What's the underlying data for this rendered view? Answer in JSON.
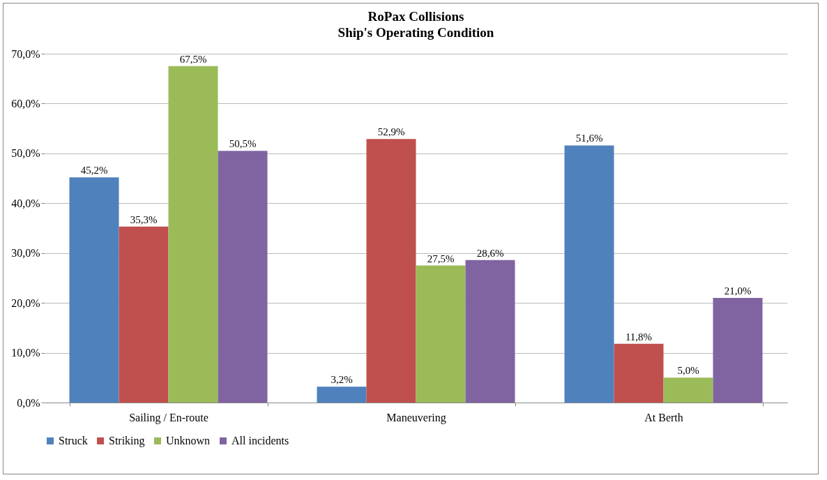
{
  "chart_data": {
    "type": "bar",
    "title": "RoPax Collisions",
    "subtitle": "Ship's Operating Condition",
    "categories": [
      "Sailing / En-route",
      "Maneuvering",
      "At Berth"
    ],
    "series": [
      {
        "name": "Struck",
        "color": "#4f81bd",
        "values": [
          45.2,
          3.2,
          51.6
        ],
        "value_labels": [
          "45,2%",
          "3,2%",
          "51,6%"
        ]
      },
      {
        "name": "Striking",
        "color": "#c0504d",
        "values": [
          35.3,
          52.9,
          11.8
        ],
        "value_labels": [
          "35,3%",
          "52,9%",
          "11,8%"
        ]
      },
      {
        "name": "Unknown",
        "color": "#9bbb59",
        "values": [
          67.5,
          27.5,
          5.0
        ],
        "value_labels": [
          "67,5%",
          "27,5%",
          "5,0%"
        ]
      },
      {
        "name": "All incidents",
        "color": "#8064a2",
        "values": [
          50.5,
          28.6,
          21.0
        ],
        "value_labels": [
          "50,5%",
          "28,6%",
          "21,0%"
        ]
      }
    ],
    "ylim": [
      0,
      70
    ],
    "yticks": [
      {
        "value": 0,
        "label": "0,0%"
      },
      {
        "value": 10,
        "label": "10,0%"
      },
      {
        "value": 20,
        "label": "20,0%"
      },
      {
        "value": 30,
        "label": "30,0%"
      },
      {
        "value": 40,
        "label": "40,0%"
      },
      {
        "value": 50,
        "label": "50,0%"
      },
      {
        "value": 60,
        "label": "60,0%"
      },
      {
        "value": 70,
        "label": "70,0%"
      }
    ],
    "grid": "y",
    "legend": "bottom"
  }
}
